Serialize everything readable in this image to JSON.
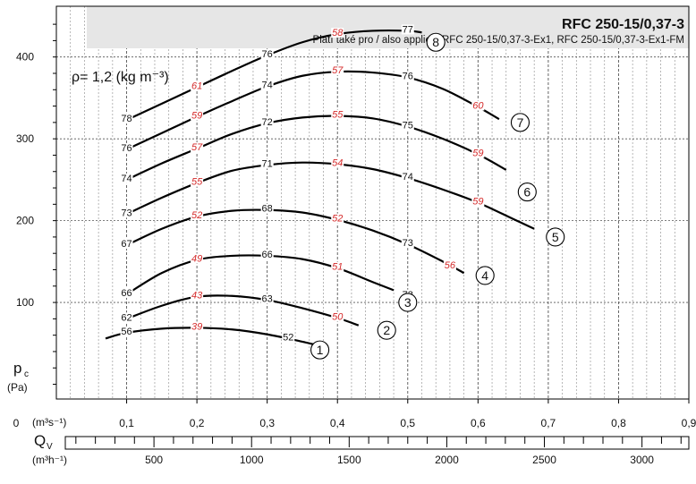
{
  "chart_data": {
    "type": "line",
    "title": "RFC 250-15/0,37-3",
    "subtitle": "Platí také pro / also applies: RFC 250-15/0,37-3-Ex1, RFC 250-15/0,37-3-Ex1-FM",
    "density_note": "ρ= 1,2 (kg m⁻³)",
    "ylabel_main": "p",
    "ylabel_sub": "c",
    "ylabel_unit": "(Pa)",
    "xlabel": "Q",
    "xlabel_sub": "V",
    "x_unit_top": "(m³s⁻¹)",
    "x_unit_bottom": "(m³h⁻¹)",
    "xlim": [
      0,
      0.9
    ],
    "ylim": [
      -18,
      462
    ],
    "x_ticks": [
      {
        "v": 0,
        "label": "0"
      },
      {
        "v": 0.1,
        "label": "0,1"
      },
      {
        "v": 0.2,
        "label": "0,2"
      },
      {
        "v": 0.3,
        "label": "0,3"
      },
      {
        "v": 0.4,
        "label": "0,4"
      },
      {
        "v": 0.5,
        "label": "0,5"
      },
      {
        "v": 0.6,
        "label": "0,6"
      },
      {
        "v": 0.7,
        "label": "0,7"
      },
      {
        "v": 0.8,
        "label": "0,8"
      },
      {
        "v": 0.9,
        "label": "0,9"
      }
    ],
    "y_ticks": [
      {
        "v": 100,
        "label": "100"
      },
      {
        "v": 200,
        "label": "200"
      },
      {
        "v": 300,
        "label": "300"
      },
      {
        "v": 400,
        "label": "400"
      }
    ],
    "x2_ticks": [
      {
        "v": 500,
        "label": "500"
      },
      {
        "v": 1000,
        "label": "1000"
      },
      {
        "v": 1500,
        "label": "1500"
      },
      {
        "v": 2000,
        "label": "2000"
      },
      {
        "v": 2500,
        "label": "2500"
      },
      {
        "v": 3000,
        "label": "3000"
      }
    ],
    "series": [
      {
        "name": "1",
        "points": [
          [
            0.07,
            56
          ],
          [
            0.1,
            63
          ],
          [
            0.15,
            68
          ],
          [
            0.2,
            69
          ],
          [
            0.25,
            67
          ],
          [
            0.3,
            61
          ],
          [
            0.35,
            52
          ],
          [
            0.37,
            48
          ]
        ],
        "labels": [
          {
            "x": 0.1,
            "y": 63,
            "t": "56",
            "c": "black"
          },
          {
            "x": 0.2,
            "y": 69,
            "t": "39",
            "c": "red"
          },
          {
            "x": 0.33,
            "y": 56,
            "t": "52",
            "c": "black"
          }
        ],
        "marker": {
          "x": 0.375,
          "y": 42
        }
      },
      {
        "name": "2",
        "points": [
          [
            0.1,
            80
          ],
          [
            0.15,
            96
          ],
          [
            0.2,
            107
          ],
          [
            0.25,
            108
          ],
          [
            0.3,
            103
          ],
          [
            0.35,
            93
          ],
          [
            0.4,
            81
          ],
          [
            0.43,
            72
          ]
        ],
        "labels": [
          {
            "x": 0.1,
            "y": 80,
            "t": "62",
            "c": "black"
          },
          {
            "x": 0.2,
            "y": 107,
            "t": "43",
            "c": "red"
          },
          {
            "x": 0.3,
            "y": 103,
            "t": "63",
            "c": "black"
          },
          {
            "x": 0.4,
            "y": 81,
            "t": "50",
            "c": "red"
          }
        ],
        "marker": {
          "x": 0.47,
          "y": 66
        }
      },
      {
        "name": "3",
        "points": [
          [
            0.1,
            110
          ],
          [
            0.15,
            136
          ],
          [
            0.2,
            152
          ],
          [
            0.25,
            157
          ],
          [
            0.3,
            157
          ],
          [
            0.35,
            153
          ],
          [
            0.4,
            142
          ],
          [
            0.45,
            125
          ],
          [
            0.48,
            115
          ]
        ],
        "labels": [
          {
            "x": 0.1,
            "y": 110,
            "t": "66",
            "c": "black"
          },
          {
            "x": 0.2,
            "y": 152,
            "t": "49",
            "c": "red"
          },
          {
            "x": 0.3,
            "y": 157,
            "t": "66",
            "c": "black"
          },
          {
            "x": 0.4,
            "y": 142,
            "t": "51",
            "c": "red"
          },
          {
            "x": 0.5,
            "y": 108,
            "t": "73",
            "c": "black"
          }
        ],
        "marker": {
          "x": 0.5,
          "y": 100
        }
      },
      {
        "name": "4",
        "points": [
          [
            0.1,
            170
          ],
          [
            0.15,
            190
          ],
          [
            0.2,
            205
          ],
          [
            0.25,
            212
          ],
          [
            0.3,
            213
          ],
          [
            0.35,
            210
          ],
          [
            0.4,
            201
          ],
          [
            0.45,
            188
          ],
          [
            0.5,
            171
          ],
          [
            0.55,
            150
          ],
          [
            0.58,
            136
          ]
        ],
        "labels": [
          {
            "x": 0.1,
            "y": 170,
            "t": "67",
            "c": "black"
          },
          {
            "x": 0.2,
            "y": 205,
            "t": "52",
            "c": "red"
          },
          {
            "x": 0.3,
            "y": 213,
            "t": "68",
            "c": "black"
          },
          {
            "x": 0.4,
            "y": 201,
            "t": "52",
            "c": "red"
          },
          {
            "x": 0.5,
            "y": 171,
            "t": "73",
            "c": "black"
          },
          {
            "x": 0.56,
            "y": 144,
            "t": "56",
            "c": "red"
          }
        ],
        "marker": {
          "x": 0.61,
          "y": 133
        }
      },
      {
        "name": "5",
        "points": [
          [
            0.1,
            208
          ],
          [
            0.15,
            228
          ],
          [
            0.2,
            246
          ],
          [
            0.25,
            261
          ],
          [
            0.3,
            268
          ],
          [
            0.35,
            271
          ],
          [
            0.4,
            269
          ],
          [
            0.45,
            263
          ],
          [
            0.5,
            252
          ],
          [
            0.55,
            238
          ],
          [
            0.6,
            222
          ],
          [
            0.65,
            202
          ],
          [
            0.68,
            190
          ]
        ],
        "labels": [
          {
            "x": 0.1,
            "y": 208,
            "t": "73",
            "c": "black"
          },
          {
            "x": 0.2,
            "y": 246,
            "t": "55",
            "c": "red"
          },
          {
            "x": 0.3,
            "y": 268,
            "t": "71",
            "c": "black"
          },
          {
            "x": 0.4,
            "y": 269,
            "t": "54",
            "c": "red"
          },
          {
            "x": 0.5,
            "y": 252,
            "t": "74",
            "c": "black"
          },
          {
            "x": 0.6,
            "y": 222,
            "t": "59",
            "c": "red"
          }
        ],
        "marker": {
          "x": 0.71,
          "y": 180
        }
      },
      {
        "name": "6",
        "points": [
          [
            0.1,
            250
          ],
          [
            0.15,
            270
          ],
          [
            0.2,
            288
          ],
          [
            0.25,
            306
          ],
          [
            0.3,
            319
          ],
          [
            0.35,
            326
          ],
          [
            0.4,
            328
          ],
          [
            0.45,
            325
          ],
          [
            0.5,
            315
          ],
          [
            0.55,
            300
          ],
          [
            0.6,
            281
          ],
          [
            0.64,
            262
          ]
        ],
        "labels": [
          {
            "x": 0.1,
            "y": 250,
            "t": "74",
            "c": "black"
          },
          {
            "x": 0.2,
            "y": 288,
            "t": "57",
            "c": "red"
          },
          {
            "x": 0.3,
            "y": 319,
            "t": "72",
            "c": "black"
          },
          {
            "x": 0.4,
            "y": 328,
            "t": "55",
            "c": "red"
          },
          {
            "x": 0.5,
            "y": 315,
            "t": "75",
            "c": "black"
          },
          {
            "x": 0.6,
            "y": 281,
            "t": "59",
            "c": "red"
          }
        ],
        "marker": {
          "x": 0.67,
          "y": 235
        }
      },
      {
        "name": "7",
        "points": [
          [
            0.1,
            287
          ],
          [
            0.15,
            307
          ],
          [
            0.2,
            327
          ],
          [
            0.25,
            346
          ],
          [
            0.3,
            364
          ],
          [
            0.35,
            377
          ],
          [
            0.4,
            382
          ],
          [
            0.45,
            381
          ],
          [
            0.5,
            375
          ],
          [
            0.55,
            361
          ],
          [
            0.6,
            339
          ],
          [
            0.63,
            324
          ]
        ],
        "labels": [
          {
            "x": 0.1,
            "y": 287,
            "t": "76",
            "c": "black"
          },
          {
            "x": 0.2,
            "y": 327,
            "t": "59",
            "c": "red"
          },
          {
            "x": 0.3,
            "y": 364,
            "t": "74",
            "c": "black"
          },
          {
            "x": 0.4,
            "y": 382,
            "t": "57",
            "c": "red"
          },
          {
            "x": 0.5,
            "y": 375,
            "t": "76",
            "c": "black"
          },
          {
            "x": 0.6,
            "y": 339,
            "t": "60",
            "c": "red"
          }
        ],
        "marker": {
          "x": 0.66,
          "y": 320
        }
      },
      {
        "name": "8",
        "points": [
          [
            0.1,
            323
          ],
          [
            0.15,
            343
          ],
          [
            0.2,
            363
          ],
          [
            0.25,
            383
          ],
          [
            0.3,
            402
          ],
          [
            0.35,
            418
          ],
          [
            0.4,
            428
          ],
          [
            0.45,
            432
          ],
          [
            0.5,
            432
          ],
          [
            0.52,
            430
          ]
        ],
        "labels": [
          {
            "x": 0.1,
            "y": 323,
            "t": "78",
            "c": "black"
          },
          {
            "x": 0.2,
            "y": 363,
            "t": "61",
            "c": "red"
          },
          {
            "x": 0.3,
            "y": 402,
            "t": "76",
            "c": "black"
          },
          {
            "x": 0.4,
            "y": 428,
            "t": "58",
            "c": "red"
          },
          {
            "x": 0.5,
            "y": 432,
            "t": "77",
            "c": "black"
          }
        ],
        "marker": {
          "x": 0.54,
          "y": 418
        }
      }
    ]
  }
}
